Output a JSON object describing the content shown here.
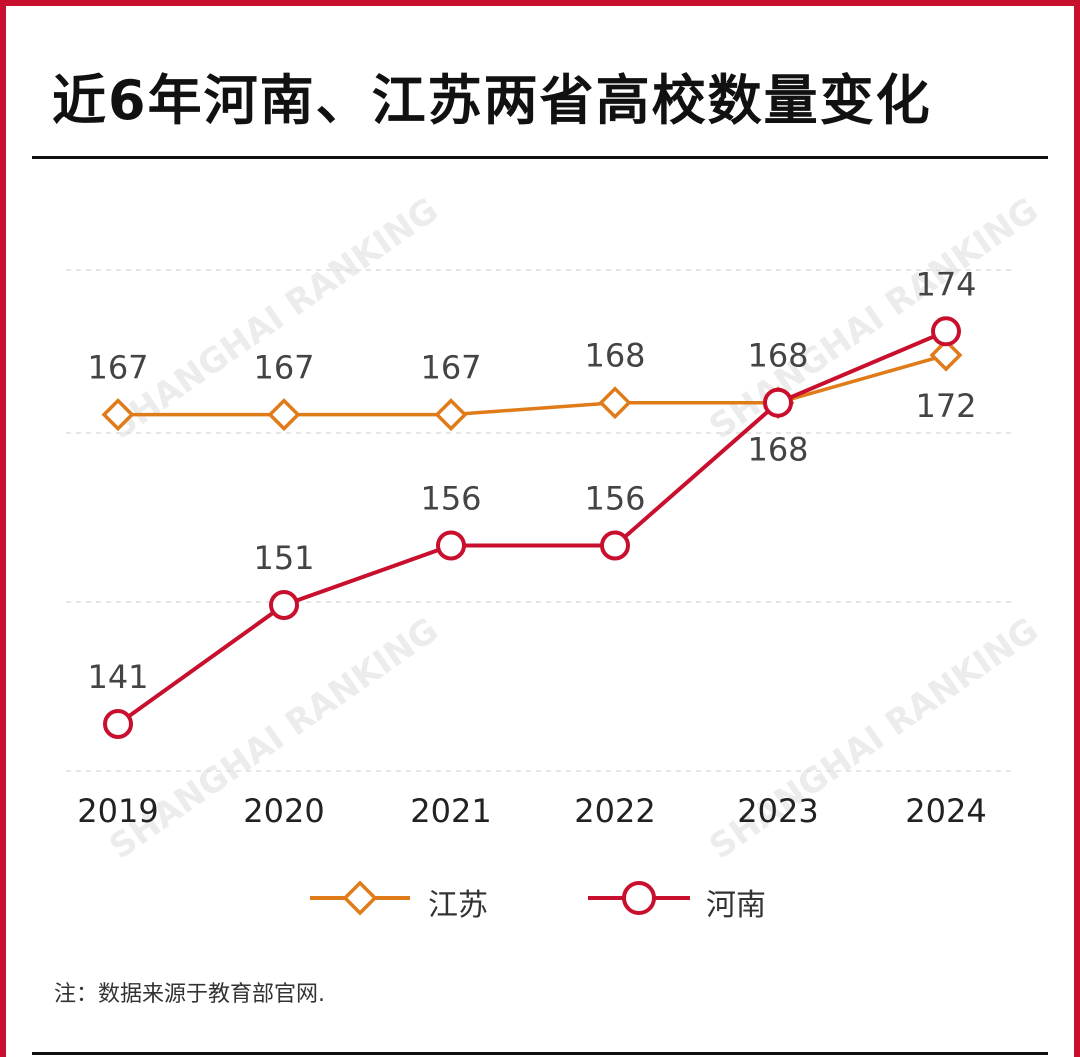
{
  "title": "近6年河南、江苏两省高校数量变化",
  "note": "注：数据来源于教育部官网.",
  "watermark": "SHANGHAI RANKING",
  "colors": {
    "frame": "#c8102e",
    "jiangsu": "#e07b1a",
    "henan": "#c8102e",
    "grid": "#dddddd",
    "label": "#444444"
  },
  "chart_data": {
    "type": "line",
    "title": "近6年河南、江苏两省高校数量变化",
    "categories": [
      "2019",
      "2020",
      "2021",
      "2022",
      "2023",
      "2024"
    ],
    "series": [
      {
        "name": "江苏",
        "marker": "diamond",
        "values": [
          167,
          167,
          167,
          168,
          168,
          172
        ]
      },
      {
        "name": "河南",
        "marker": "circle",
        "values": [
          141,
          151,
          156,
          156,
          168,
          174
        ]
      }
    ],
    "xlabel": "",
    "ylabel": "",
    "ylim": [
      140,
      175
    ],
    "grid": true,
    "legend": "bottom-center"
  }
}
